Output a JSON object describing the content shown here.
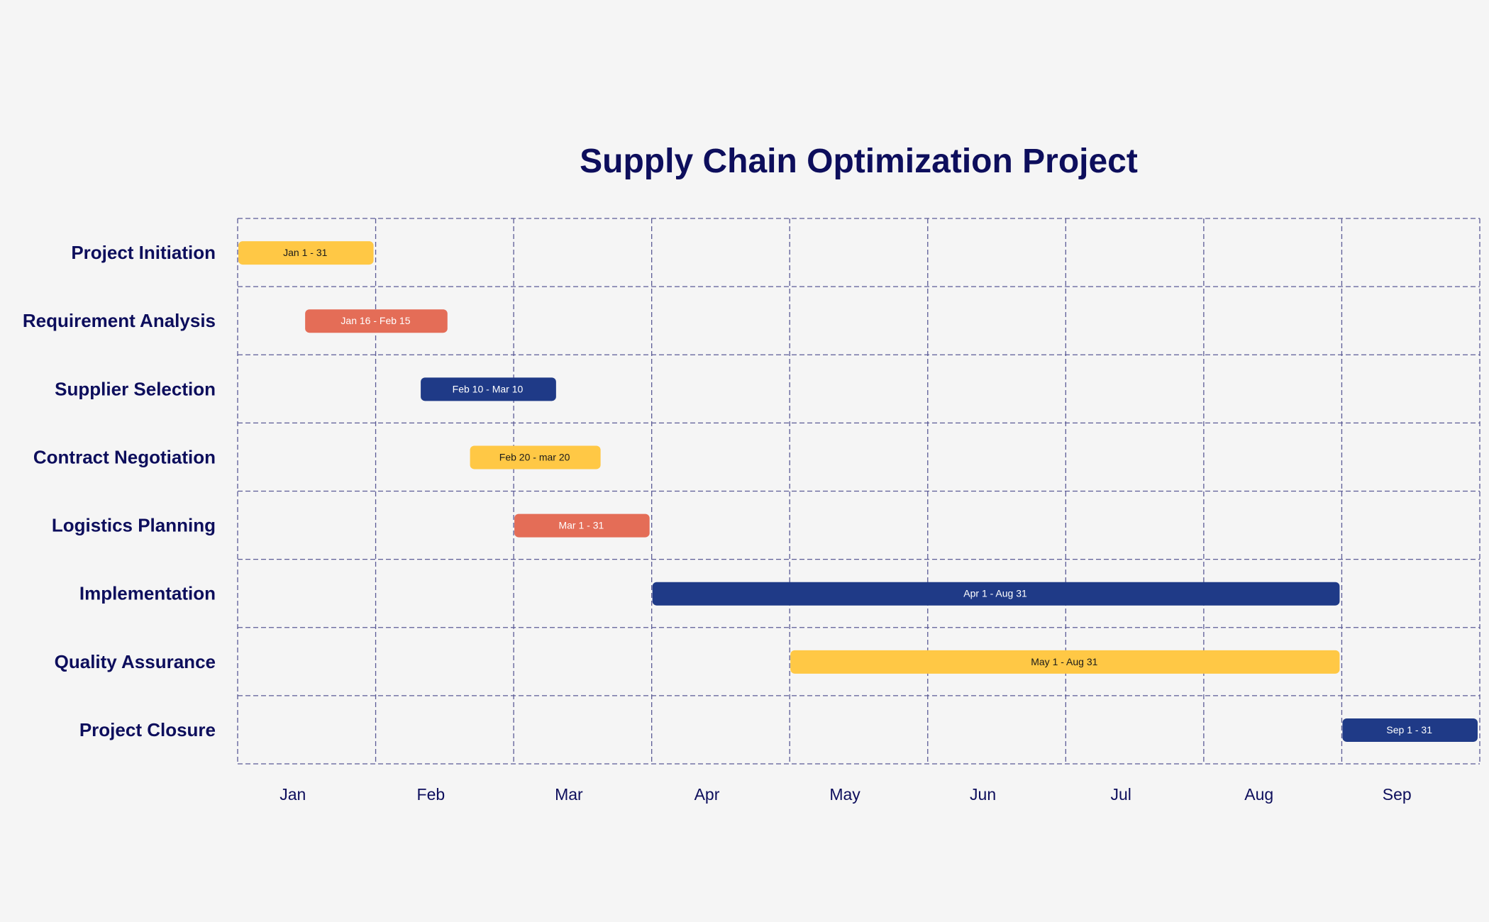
{
  "chart_data": {
    "type": "gantt",
    "title": "Supply Chain Optimization Project",
    "x_tick_labels": [
      "Jan",
      "Feb",
      "Mar",
      "Apr",
      "May",
      "Jun",
      "Jul",
      "Aug",
      "Sep"
    ],
    "grid": true,
    "tasks": [
      {
        "name": "Project Initiation",
        "start": "Jan 1",
        "end": "Jan 31",
        "label": "Jan 1 - 31",
        "color": "#FFC845"
      },
      {
        "name": "Requirement Analysis",
        "start": "Jan 16",
        "end": "Feb 15",
        "label": "Jan 16 - Feb 15",
        "color": "#E46D57"
      },
      {
        "name": "Supplier Selection",
        "start": "Feb 10",
        "end": "Mar 10",
        "label": "Feb 10 - Mar 10",
        "color": "#1F3A87"
      },
      {
        "name": "Contract Negotiation",
        "start": "Feb 20",
        "end": "Mar 20",
        "label": "Feb 20 - mar 20",
        "color": "#FFC845"
      },
      {
        "name": "Logistics Planning",
        "start": "Mar 1",
        "end": "Mar 31",
        "label": "Mar 1 - 31",
        "color": "#E46D57"
      },
      {
        "name": "Implementation",
        "start": "Apr 1",
        "end": "Aug 31",
        "label": "Apr 1 - Aug 31",
        "color": "#1F3A87"
      },
      {
        "name": "Quality Assurance",
        "start": "May 1",
        "end": "Aug 31",
        "label": "May 1 - Aug 31",
        "color": "#FFC845"
      },
      {
        "name": "Project Closure",
        "start": "Sep 1",
        "end": "Sep 31",
        "label": "Sep 1 - 31",
        "color": "#1F3A87"
      }
    ]
  }
}
